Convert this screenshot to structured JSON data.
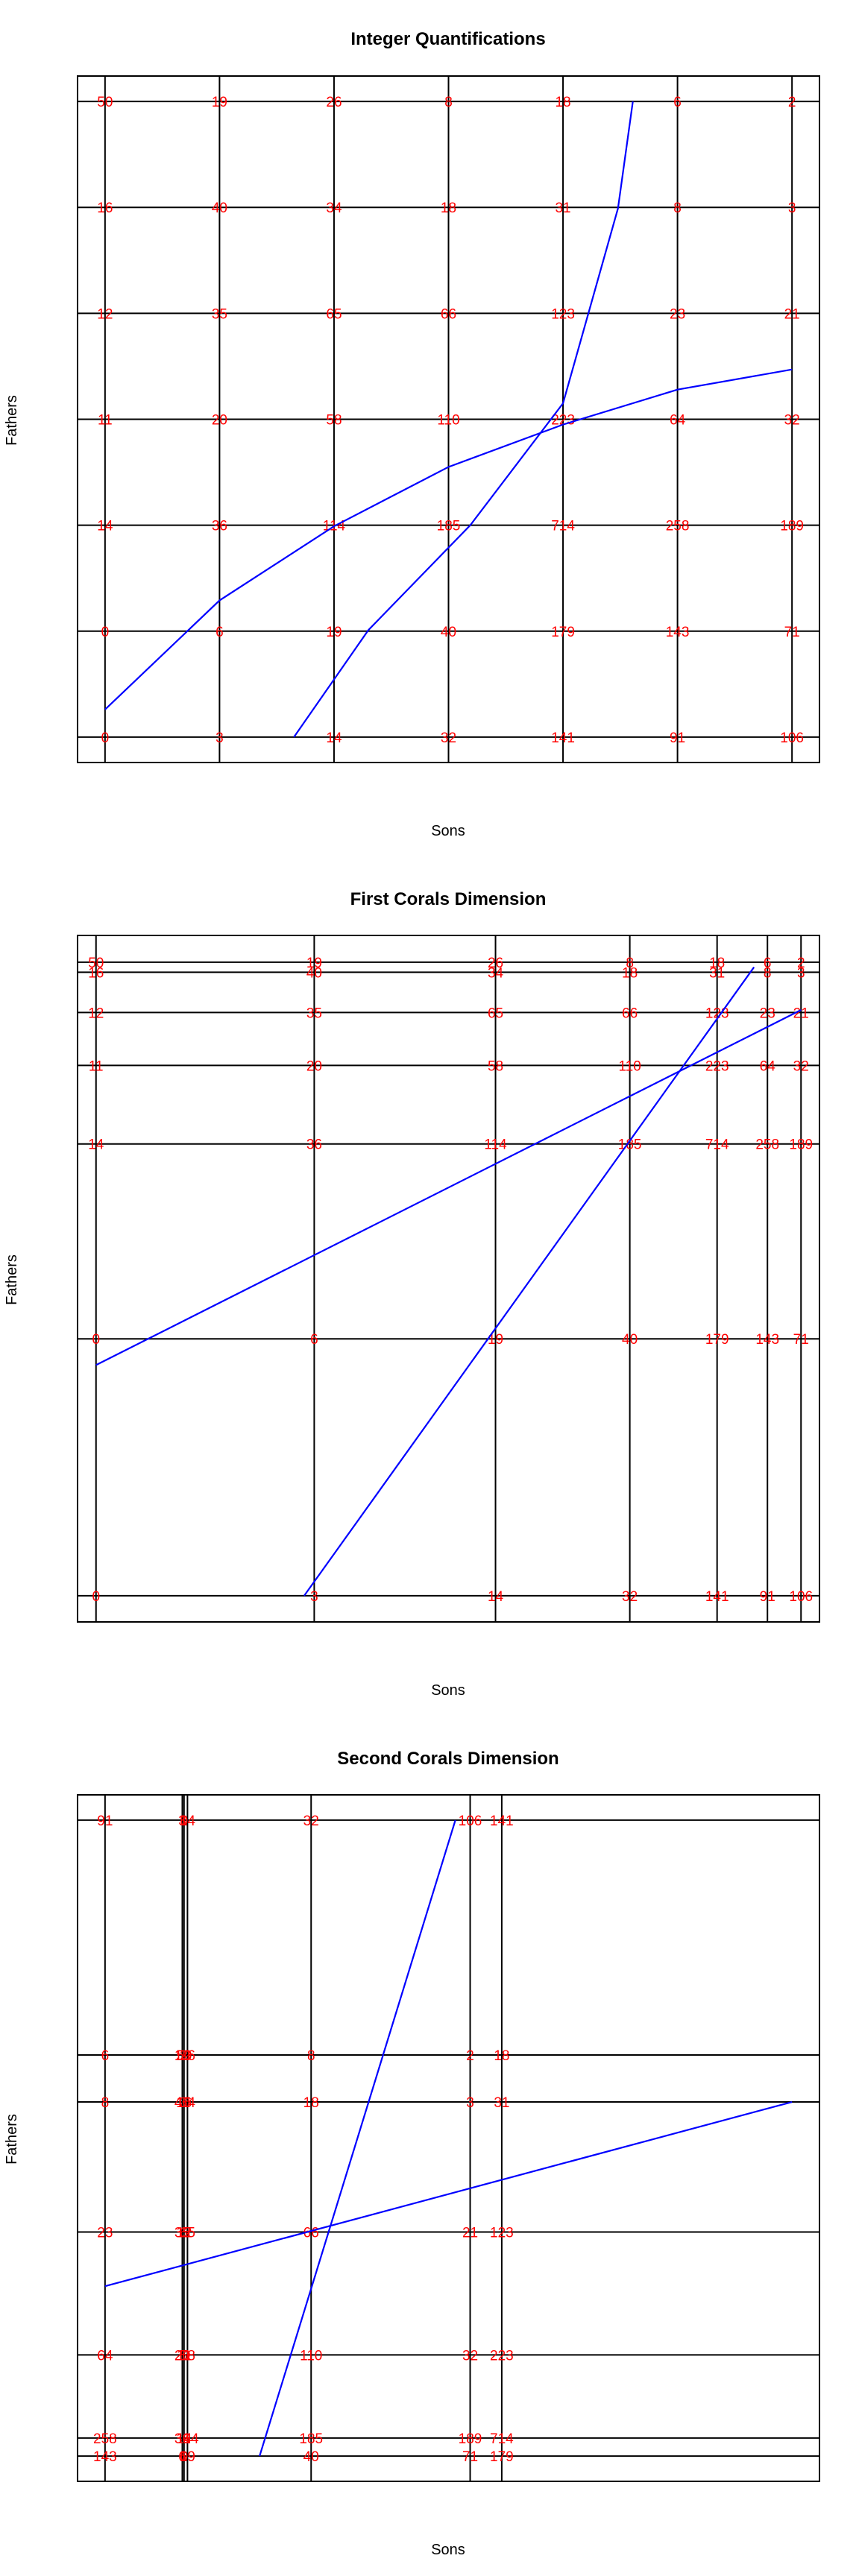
{
  "colors": {
    "frame": "#000000",
    "table_values": "#ff0000",
    "fit_lines": "#0000ff"
  },
  "table": {
    "rows": [
      [
        50,
        19,
        26,
        8,
        18,
        6,
        2
      ],
      [
        16,
        40,
        34,
        18,
        31,
        8,
        3
      ],
      [
        12,
        35,
        65,
        66,
        123,
        23,
        21
      ],
      [
        11,
        20,
        58,
        110,
        223,
        64,
        32
      ],
      [
        14,
        36,
        114,
        185,
        714,
        258,
        189
      ],
      [
        0,
        6,
        19,
        40,
        179,
        143,
        71
      ],
      [
        0,
        3,
        14,
        32,
        141,
        91,
        106
      ]
    ]
  },
  "chart_data": [
    {
      "type": "table",
      "title": "Integer Quantifications",
      "xlabel": "Sons",
      "ylabel": "Fathers",
      "x_positions": [
        1,
        2,
        3,
        4,
        5,
        6,
        7
      ],
      "y_positions": [
        7,
        6,
        5,
        4,
        3,
        2,
        1
      ],
      "xlim": [
        0.76,
        7.24
      ],
      "ylim": [
        0.76,
        7.24
      ],
      "lines": [
        {
          "x": [
            1,
            2,
            3,
            4,
            5,
            6,
            7
          ],
          "y": [
            1.26,
            2.29,
            2.99,
            3.55,
            3.95,
            4.28,
            4.47
          ]
        },
        {
          "x": [
            2.65,
            3.3,
            4.19,
            5.0,
            5.48,
            5.61
          ],
          "y": [
            1,
            2.01,
            3.0,
            4.15,
            5.99,
            7.0
          ]
        }
      ]
    },
    {
      "type": "table",
      "title": "First Corals Dimension",
      "xlabel": "Sons",
      "ylabel": "Fathers",
      "x_positions": [
        -1.0,
        -0.35,
        0.19,
        0.59,
        0.85,
        1.0,
        1.1
      ],
      "y_positions": [
        1.11,
        1.09,
        1.01,
        0.905,
        0.749,
        0.362,
        -0.148
      ],
      "xlim": [
        -1.055,
        1.155
      ],
      "ylim": [
        -0.2,
        1.163
      ],
      "lines": [
        {
          "x": [
            -1.0,
            1.1
          ],
          "y": [
            0.31,
            1.015
          ]
        },
        {
          "x": [
            -0.38,
            0.96
          ],
          "y": [
            -0.148,
            1.1
          ]
        }
      ]
    },
    {
      "type": "table",
      "title": "Second Corals Dimension",
      "xlabel": "Sons",
      "ylabel": "Fathers",
      "x_positions": [
        -1.0,
        -0.77,
        -0.775,
        -0.76,
        -0.4,
        0.063,
        0.155
      ],
      "y_positions": [
        0.09,
        -0.56,
        -0.69,
        -1.05,
        -1.39,
        -1.62,
        -1.67
      ],
      "xlim": [
        -1.08,
        1.08
      ],
      "ylim": [
        -1.74,
        0.16
      ],
      "sons_order": [
        5,
        0,
        1,
        2,
        3,
        6,
        4
      ],
      "fathers_order": [
        6,
        0,
        1,
        2,
        3,
        4,
        5
      ],
      "lines": [
        {
          "x": [
            -1.0,
            1.0
          ],
          "y": [
            -1.2,
            -0.69
          ]
        },
        {
          "x": [
            -0.55,
            0.02
          ],
          "y": [
            -1.67,
            0.09
          ]
        }
      ]
    }
  ]
}
